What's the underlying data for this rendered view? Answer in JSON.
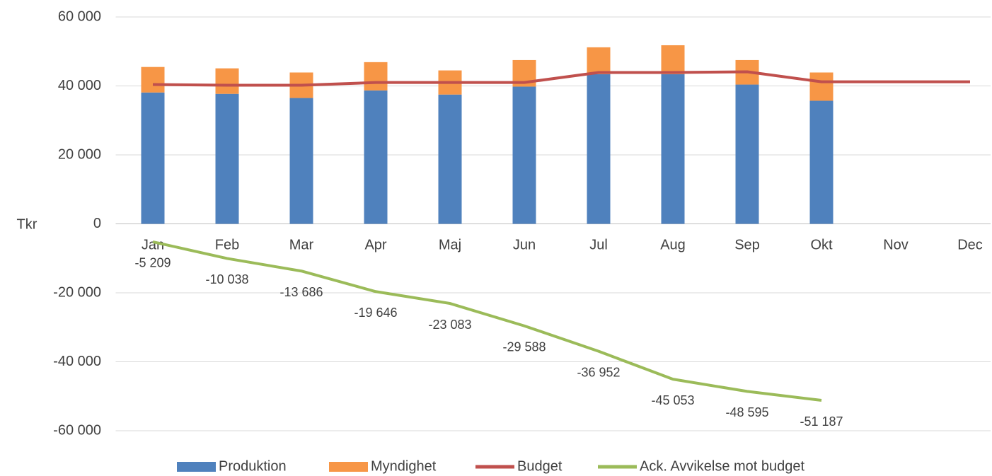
{
  "chart_data": {
    "type": "bar",
    "stacked": true,
    "ylabel": "Tkr",
    "categories": [
      "Jan",
      "Feb",
      "Mar",
      "Apr",
      "Maj",
      "Jun",
      "Jul",
      "Aug",
      "Sep",
      "Okt",
      "Nov",
      "Dec"
    ],
    "series": [
      {
        "name": "Produktion",
        "type": "bar",
        "color": "#4f81bd",
        "values": [
          38100,
          37700,
          36500,
          38700,
          37500,
          39800,
          43400,
          43400,
          40400,
          35700,
          null,
          null
        ]
      },
      {
        "name": "Myndighet",
        "type": "bar",
        "color": "#f79646",
        "values": [
          7400,
          7400,
          7400,
          8200,
          7000,
          7700,
          7800,
          8400,
          7100,
          8200,
          null,
          null
        ]
      },
      {
        "name": "Budget",
        "type": "line",
        "color": "#c0504d",
        "values": [
          40400,
          40200,
          40200,
          41000,
          41000,
          41000,
          43900,
          43900,
          44100,
          41200,
          41200,
          41200
        ]
      },
      {
        "name": "Ack. Avvikelse mot budget",
        "type": "line",
        "color": "#9bbb59",
        "values": [
          -5209,
          -10038,
          -13686,
          -19646,
          -23083,
          -29588,
          -36952,
          -45053,
          -48595,
          -51187,
          null,
          null
        ],
        "value_labels": [
          "-5 209",
          "-10 038",
          "-13 686",
          "-19 646",
          "-23 083",
          "-29 588",
          "-36 952",
          "-45 053",
          "-48 595",
          "-51 187",
          null,
          null
        ]
      }
    ],
    "ylim": [
      -60000,
      60000
    ],
    "yticks": [
      {
        "value": -60000,
        "label": "-60 000"
      },
      {
        "value": -40000,
        "label": "-40 000"
      },
      {
        "value": -20000,
        "label": "-20 000"
      },
      0,
      {
        "value": 20000,
        "label": "20 000"
      },
      {
        "value": 40000,
        "label": "40 000"
      },
      {
        "value": 60000,
        "label": "60 000"
      }
    ],
    "grid": true,
    "legend": "bottom"
  }
}
